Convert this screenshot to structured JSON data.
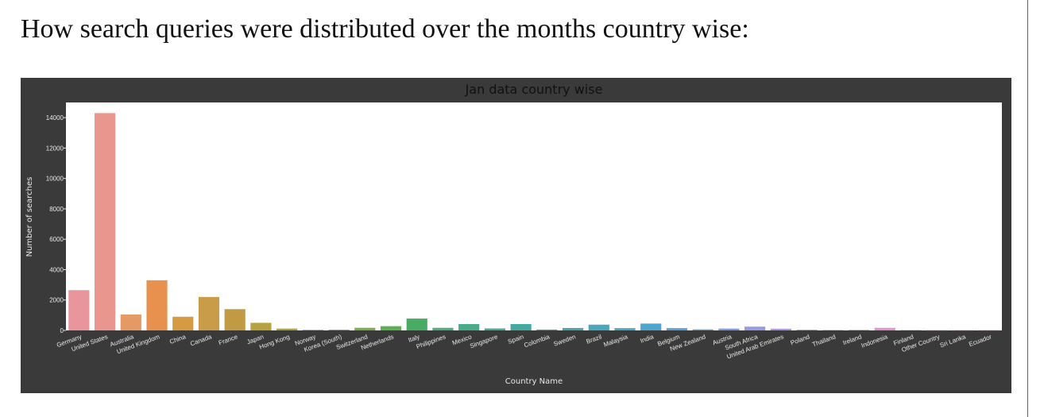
{
  "page": {
    "heading": "How search queries were distributed over the months country wise:"
  },
  "chart_data": {
    "type": "bar",
    "title": "Jan data country wise",
    "xlabel": "Country Name",
    "ylabel": "Number of searches",
    "ylim": [
      0,
      15000
    ],
    "yticks": [
      0,
      2000,
      4000,
      6000,
      8000,
      10000,
      12000,
      14000
    ],
    "grid": false,
    "categories": [
      "Germany",
      "United States",
      "Australia",
      "United Kingdom",
      "China",
      "Canada",
      "France",
      "Japan",
      "Hong Kong",
      "Norway",
      "Korea (South)",
      "Switzerland",
      "Netherlands",
      "Italy",
      "Philippines",
      "Mexico",
      "Singapore",
      "Spain",
      "Colombia",
      "Sweden",
      "Brazil",
      "Malaysia",
      "India",
      "Belgium",
      "New Zealand",
      "Austria",
      "South Africa",
      "United Arab Emirates",
      "Poland",
      "Thailand",
      "Ireland",
      "Indonesia",
      "Finland",
      "Other Country",
      "Sri Lanka",
      "Ecuador"
    ],
    "values": [
      2650,
      14300,
      1050,
      3300,
      900,
      2200,
      1400,
      500,
      120,
      40,
      50,
      170,
      280,
      780,
      170,
      420,
      130,
      420,
      60,
      160,
      380,
      150,
      450,
      150,
      70,
      120,
      250,
      110,
      50,
      30,
      40,
      170,
      30,
      20,
      20,
      20
    ],
    "colors": [
      "#e8969c",
      "#e9968f",
      "#e59a66",
      "#e8914f",
      "#d59a42",
      "#c89c49",
      "#c39a44",
      "#b8a240",
      "#aaa43f",
      "#9aa93f",
      "#88ad43",
      "#78b047",
      "#5ab14f",
      "#49ac63",
      "#49b07b",
      "#48ac8a",
      "#47ab96",
      "#45a99f",
      "#45a8a8",
      "#46a7b1",
      "#48a9bb",
      "#4aa8c4",
      "#4ea6cf",
      "#5aa0d6",
      "#6a9cda",
      "#809ae0",
      "#989ae2",
      "#ab99e0",
      "#bc97dd",
      "#c995d8",
      "#d694d3",
      "#e393d0",
      "#e994c6",
      "#e996bb",
      "#e995ae",
      "#e897a3"
    ]
  }
}
